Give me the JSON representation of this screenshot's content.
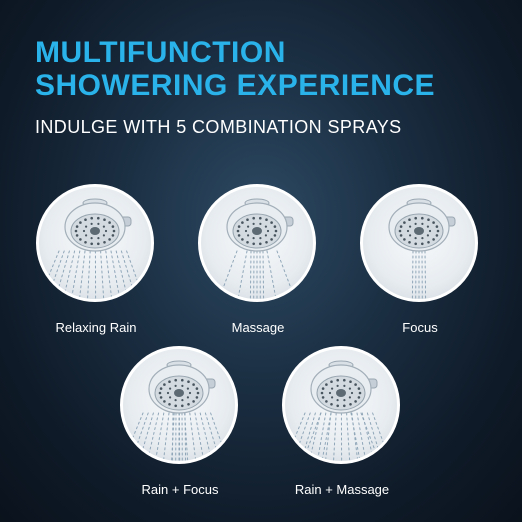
{
  "title": {
    "line1": "MULTIFUNCTION",
    "line2": "SHOWERING EXPERIENCE"
  },
  "subtitle": "INDULGE WITH 5 COMBINATION SPRAYS",
  "sprays": [
    {
      "label": "Relaxing Rain",
      "pattern": "rain"
    },
    {
      "label": "Massage",
      "pattern": "massage"
    },
    {
      "label": "Focus",
      "pattern": "focus"
    },
    {
      "label": "Rain + Focus",
      "pattern": "rain-focus"
    },
    {
      "label": "Rain + Massage",
      "pattern": "rain-massage"
    }
  ],
  "colors": {
    "title": "#29b3ea",
    "background": "#0f1b29",
    "text": "#ffffff"
  }
}
